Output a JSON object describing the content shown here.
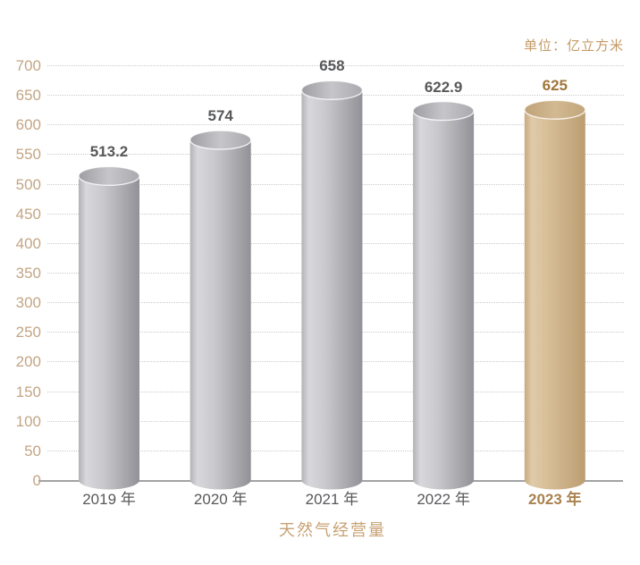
{
  "unit_label": "单位：亿立方米",
  "colors": {
    "tan_tick_text": "#c3a584",
    "gold_unit_text": "#c49a66",
    "gold_title_text": "#c7a173",
    "dark_value_text": "#57585a",
    "gold_value_text": "#a0763a",
    "dark_year_text": "#57585a",
    "gold_year_text": "#a9824e",
    "gridline": "#cbcbcb",
    "axis_line": "#a2a2a4",
    "gray_bar_edge": "#919197",
    "gray_bar_highlight": "#d8d8dc",
    "gold_bar_edge": "#bc9d72",
    "gold_bar_highlight": "#e0cba9"
  },
  "chart_data": {
    "type": "bar",
    "title": "天然气经营量",
    "unit": "单位：亿立方米",
    "categories": [
      "2019 年",
      "2020 年",
      "2021 年",
      "2022 年",
      "2023 年"
    ],
    "values": [
      513.2,
      574,
      658,
      622.9,
      625
    ],
    "value_labels": [
      "513.2",
      "574",
      "658",
      "622.9",
      "625"
    ],
    "highlight_index": 4,
    "bar_style": "3d-cylinder",
    "ylim": [
      0,
      700
    ],
    "ytick_step": 50,
    "yticks": [
      0,
      50,
      100,
      150,
      200,
      250,
      300,
      350,
      400,
      450,
      500,
      550,
      600,
      650,
      700
    ],
    "grid": "dotted horizontal gridlines at each 50",
    "legend": "none"
  }
}
